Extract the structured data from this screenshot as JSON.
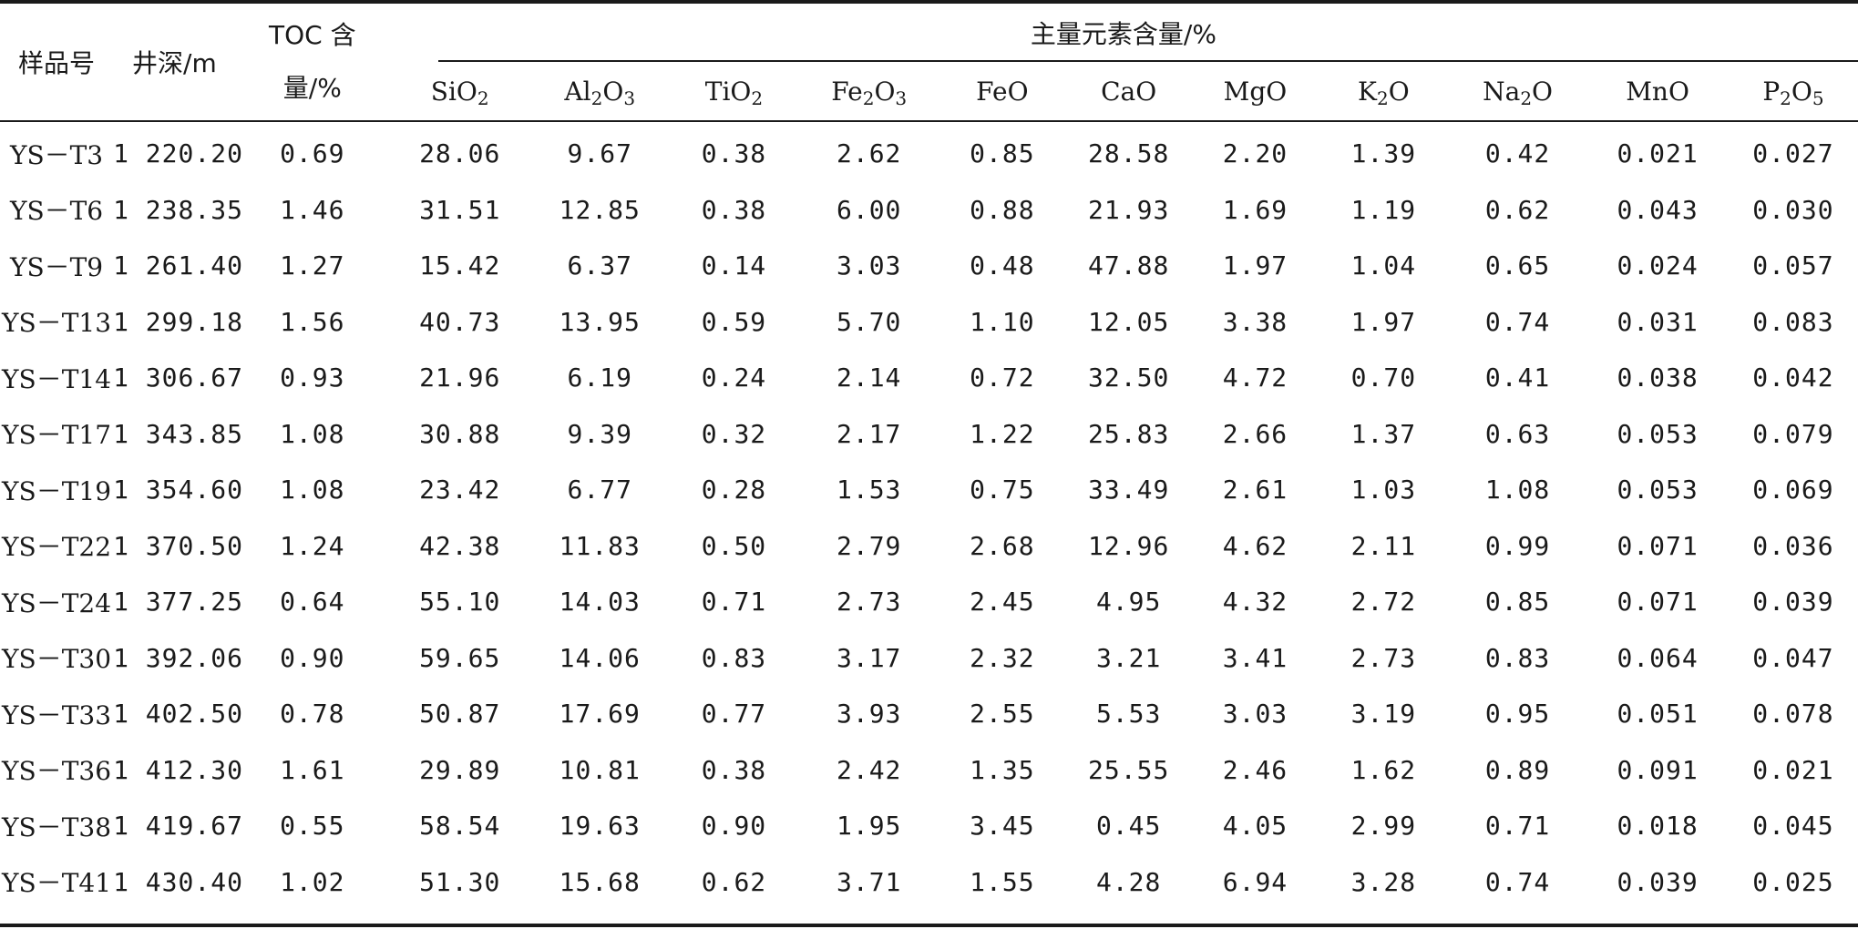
{
  "table": {
    "headers": {
      "sample": "样品号",
      "depth": "井深/m",
      "toc_line1": "TOC 含",
      "toc_line2": "量/%",
      "group": "主量元素含量/%",
      "oxides": [
        {
          "base": "SiO",
          "sub": "2",
          "tail": ""
        },
        {
          "base": "Al",
          "sub": "2",
          "tail": "O",
          "sub2": "3"
        },
        {
          "base": "TiO",
          "sub": "2",
          "tail": ""
        },
        {
          "base": "Fe",
          "sub": "2",
          "tail": "O",
          "sub2": "3"
        },
        {
          "base": "FeO",
          "sub": "",
          "tail": ""
        },
        {
          "base": "CaO",
          "sub": "",
          "tail": ""
        },
        {
          "base": "MgO",
          "sub": "",
          "tail": ""
        },
        {
          "base": "K",
          "sub": "2",
          "tail": "O"
        },
        {
          "base": "Na",
          "sub": "2",
          "tail": "O"
        },
        {
          "base": "MnO",
          "sub": "",
          "tail": ""
        },
        {
          "base": "P",
          "sub": "2",
          "tail": "O",
          "sub2": "5"
        }
      ]
    },
    "rows": [
      [
        "YS－T3",
        "1 220.20",
        "0.69",
        "28.06",
        "9.67",
        "0.38",
        "2.62",
        "0.85",
        "28.58",
        "2.20",
        "1.39",
        "0.42",
        "0.021",
        "0.027"
      ],
      [
        "YS－T6",
        "1 238.35",
        "1.46",
        "31.51",
        "12.85",
        "0.38",
        "6.00",
        "0.88",
        "21.93",
        "1.69",
        "1.19",
        "0.62",
        "0.043",
        "0.030"
      ],
      [
        "YS－T9",
        "1 261.40",
        "1.27",
        "15.42",
        "6.37",
        "0.14",
        "3.03",
        "0.48",
        "47.88",
        "1.97",
        "1.04",
        "0.65",
        "0.024",
        "0.057"
      ],
      [
        "YS－T13",
        "1 299.18",
        "1.56",
        "40.73",
        "13.95",
        "0.59",
        "5.70",
        "1.10",
        "12.05",
        "3.38",
        "1.97",
        "0.74",
        "0.031",
        "0.083"
      ],
      [
        "YS－T14",
        "1 306.67",
        "0.93",
        "21.96",
        "6.19",
        "0.24",
        "2.14",
        "0.72",
        "32.50",
        "4.72",
        "0.70",
        "0.41",
        "0.038",
        "0.042"
      ],
      [
        "YS－T17",
        "1 343.85",
        "1.08",
        "30.88",
        "9.39",
        "0.32",
        "2.17",
        "1.22",
        "25.83",
        "2.66",
        "1.37",
        "0.63",
        "0.053",
        "0.079"
      ],
      [
        "YS－T19",
        "1 354.60",
        "1.08",
        "23.42",
        "6.77",
        "0.28",
        "1.53",
        "0.75",
        "33.49",
        "2.61",
        "1.03",
        "1.08",
        "0.053",
        "0.069"
      ],
      [
        "YS－T22",
        "1 370.50",
        "1.24",
        "42.38",
        "11.83",
        "0.50",
        "2.79",
        "2.68",
        "12.96",
        "4.62",
        "2.11",
        "0.99",
        "0.071",
        "0.036"
      ],
      [
        "YS－T24",
        "1 377.25",
        "0.64",
        "55.10",
        "14.03",
        "0.71",
        "2.73",
        "2.45",
        "4.95",
        "4.32",
        "2.72",
        "0.85",
        "0.071",
        "0.039"
      ],
      [
        "YS－T30",
        "1 392.06",
        "0.90",
        "59.65",
        "14.06",
        "0.83",
        "3.17",
        "2.32",
        "3.21",
        "3.41",
        "2.73",
        "0.83",
        "0.064",
        "0.047"
      ],
      [
        "YS－T33",
        "1 402.50",
        "0.78",
        "50.87",
        "17.69",
        "0.77",
        "3.93",
        "2.55",
        "5.53",
        "3.03",
        "3.19",
        "0.95",
        "0.051",
        "0.078"
      ],
      [
        "YS－T36",
        "1 412.30",
        "1.61",
        "29.89",
        "10.81",
        "0.38",
        "2.42",
        "1.35",
        "25.55",
        "2.46",
        "1.62",
        "0.89",
        "0.091",
        "0.021"
      ],
      [
        "YS－T38",
        "1 419.67",
        "0.55",
        "58.54",
        "19.63",
        "0.90",
        "1.95",
        "3.45",
        "0.45",
        "4.05",
        "2.99",
        "0.71",
        "0.018",
        "0.045"
      ],
      [
        "YS－T41",
        "1 430.40",
        "1.02",
        "51.30",
        "15.68",
        "0.62",
        "3.71",
        "1.55",
        "4.28",
        "6.94",
        "3.28",
        "0.74",
        "0.039",
        "0.025"
      ]
    ]
  }
}
